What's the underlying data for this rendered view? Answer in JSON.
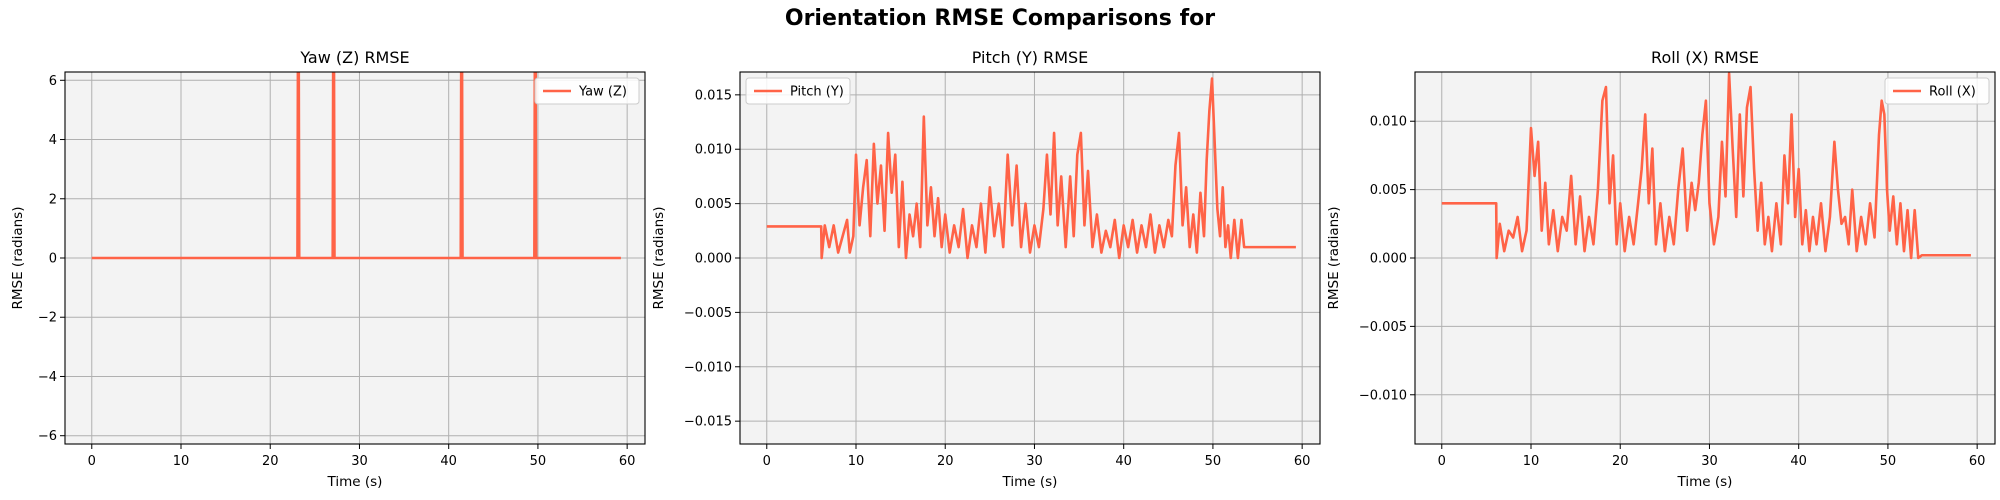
{
  "figure": {
    "suptitle": "Orientation RMSE Comparisons for"
  },
  "chart_data": [
    {
      "type": "line",
      "title": "Yaw (Z) RMSE",
      "xlabel": "Time (s)",
      "ylabel": "RMSE (radians)",
      "xlim": [
        -3,
        62
      ],
      "ylim": [
        -6.28,
        6.28
      ],
      "xticks": [
        0,
        10,
        20,
        30,
        40,
        50,
        60
      ],
      "yticks": [
        -6,
        -4,
        -2,
        0,
        2,
        4,
        6
      ],
      "ytick_labels": [
        "−6",
        "−4",
        "−2",
        "0",
        "2",
        "4",
        "6"
      ],
      "grid": true,
      "legend": "top-right",
      "background": "#f3f3f3",
      "series": [
        {
          "name": "Yaw (Z)",
          "color": "#ff6347",
          "x": [
            0,
            10,
            20,
            23.05,
            23.1,
            23.2,
            23.25,
            27.0,
            27.05,
            27.15,
            27.2,
            30,
            41.35,
            41.4,
            41.5,
            41.55,
            49.6,
            49.65,
            49.75,
            49.8,
            55,
            59.3
          ],
          "y": [
            0.0,
            0.0,
            0.0,
            0.0,
            6.28,
            6.28,
            0.0,
            0.0,
            6.28,
            6.28,
            0.0,
            0.0,
            0.0,
            6.28,
            6.28,
            0.0,
            0.0,
            6.28,
            6.28,
            0.0,
            0.0,
            0.0
          ]
        }
      ]
    },
    {
      "type": "line",
      "title": "Pitch (Y) RMSE",
      "xlabel": "Time (s)",
      "ylabel": "RMSE (radians)",
      "xlim": [
        -3,
        62
      ],
      "ylim": [
        -0.0171,
        0.0171
      ],
      "xticks": [
        0,
        10,
        20,
        30,
        40,
        50,
        60
      ],
      "yticks": [
        -0.015,
        -0.01,
        -0.005,
        0.0,
        0.005,
        0.01,
        0.015
      ],
      "ytick_labels": [
        "−0.015",
        "−0.010",
        "−0.005",
        "0.000",
        "0.005",
        "0.010",
        "0.015"
      ],
      "grid": true,
      "legend": "top-left",
      "background": "#f3f3f3",
      "series": [
        {
          "name": "Pitch (Y)",
          "color": "#ff6347",
          "x": [
            0,
            6.1,
            6.15,
            6.5,
            7,
            7.5,
            8,
            8.5,
            9,
            9.3,
            9.7,
            10,
            10.4,
            10.8,
            11.2,
            11.6,
            12,
            12.4,
            12.8,
            13.2,
            13.6,
            14,
            14.4,
            14.8,
            15.2,
            15.6,
            16,
            16.4,
            16.8,
            17.2,
            17.6,
            18,
            18.4,
            18.8,
            19.2,
            19.6,
            20,
            20.5,
            21,
            21.5,
            22,
            22.5,
            23,
            23.5,
            24,
            24.5,
            25,
            25.5,
            26,
            26.5,
            27,
            27.5,
            28,
            28.5,
            29,
            29.5,
            30,
            30.5,
            31,
            31.4,
            31.8,
            32.2,
            32.6,
            33,
            33.5,
            34,
            34.4,
            34.8,
            35.2,
            35.6,
            36,
            36.5,
            37,
            37.5,
            38,
            38.5,
            39,
            39.5,
            40,
            40.5,
            41,
            41.5,
            42,
            42.5,
            43,
            43.5,
            44,
            44.5,
            45,
            45.4,
            45.8,
            46.2,
            46.6,
            47,
            47.4,
            47.8,
            48.2,
            48.6,
            49,
            49.3,
            49.6,
            49.9,
            50.2,
            50.5,
            50.8,
            51.1,
            51.4,
            51.7,
            52,
            52.4,
            52.8,
            53.2,
            53.5,
            55,
            57,
            59.3
          ],
          "y": [
            0.0029,
            0.0029,
            0.0,
            0.003,
            0.001,
            0.003,
            0.0005,
            0.002,
            0.0035,
            0.0005,
            0.002,
            0.0095,
            0.003,
            0.0065,
            0.009,
            0.002,
            0.0105,
            0.005,
            0.0085,
            0.0025,
            0.0115,
            0.006,
            0.0095,
            0.001,
            0.007,
            0.0,
            0.004,
            0.002,
            0.005,
            0.001,
            0.013,
            0.003,
            0.0065,
            0.002,
            0.0055,
            0.001,
            0.004,
            0.0005,
            0.003,
            0.001,
            0.0045,
            0.0,
            0.003,
            0.001,
            0.005,
            0.0005,
            0.0065,
            0.002,
            0.005,
            0.001,
            0.0095,
            0.003,
            0.0085,
            0.001,
            0.005,
            0.0005,
            0.003,
            0.001,
            0.0045,
            0.0095,
            0.004,
            0.0115,
            0.003,
            0.0075,
            0.001,
            0.0075,
            0.002,
            0.0095,
            0.0115,
            0.003,
            0.008,
            0.001,
            0.004,
            0.0005,
            0.0025,
            0.001,
            0.0035,
            0.0,
            0.003,
            0.001,
            0.0035,
            0.0005,
            0.003,
            0.001,
            0.004,
            0.0005,
            0.003,
            0.001,
            0.0035,
            0.002,
            0.0085,
            0.0115,
            0.003,
            0.0065,
            0.001,
            0.004,
            0.0005,
            0.006,
            0.002,
            0.009,
            0.0135,
            0.0165,
            0.0105,
            0.0045,
            0.002,
            0.0065,
            0.001,
            0.003,
            0.0,
            0.0035,
            0.0,
            0.0035,
            0.001,
            0.001,
            0.001,
            0.001
          ]
        }
      ]
    },
    {
      "type": "line",
      "title": "Roll (X) RMSE",
      "xlabel": "Time (s)",
      "ylabel": "RMSE (radians)",
      "xlim": [
        -3,
        62
      ],
      "ylim": [
        -0.0136,
        0.0136
      ],
      "xticks": [
        0,
        10,
        20,
        30,
        40,
        50,
        60
      ],
      "yticks": [
        -0.01,
        -0.005,
        0.0,
        0.005,
        0.01
      ],
      "ytick_labels": [
        "−0.010",
        "−0.005",
        "0.000",
        "0.005",
        "0.010"
      ],
      "grid": true,
      "legend": "top-right",
      "background": "#f3f3f3",
      "series": [
        {
          "name": "Roll (X)",
          "color": "#ff6347",
          "x": [
            0,
            6.1,
            6.15,
            6.5,
            7,
            7.5,
            8,
            8.5,
            9,
            9.5,
            10,
            10.4,
            10.8,
            11.2,
            11.6,
            12,
            12.5,
            13,
            13.5,
            14,
            14.5,
            15,
            15.5,
            16,
            16.5,
            17,
            17.5,
            18,
            18.4,
            18.8,
            19.2,
            19.6,
            20,
            20.5,
            21,
            21.5,
            22,
            22.4,
            22.8,
            23.2,
            23.6,
            24,
            24.5,
            25,
            25.5,
            26,
            26.5,
            27,
            27.5,
            28,
            28.4,
            28.8,
            29.2,
            29.6,
            30,
            30.5,
            31,
            31.4,
            31.8,
            32.2,
            32.6,
            33,
            33.4,
            33.8,
            34.2,
            34.6,
            35,
            35.4,
            35.8,
            36.2,
            36.6,
            37,
            37.5,
            38,
            38.4,
            38.8,
            39.2,
            39.6,
            40,
            40.4,
            40.8,
            41.2,
            41.6,
            42,
            42.5,
            43,
            43.5,
            44,
            44.4,
            44.8,
            45.2,
            45.6,
            46,
            46.5,
            47,
            47.5,
            48,
            48.5,
            49,
            49.3,
            49.6,
            49.9,
            50.2,
            50.6,
            51,
            51.4,
            51.8,
            52.2,
            52.6,
            53,
            53.4,
            53.8,
            55,
            57,
            59.3
          ],
          "y": [
            0.004,
            0.004,
            0.0,
            0.0025,
            0.0005,
            0.002,
            0.0015,
            0.003,
            0.0005,
            0.002,
            0.0095,
            0.006,
            0.0085,
            0.002,
            0.0055,
            0.001,
            0.0035,
            0.0005,
            0.003,
            0.002,
            0.006,
            0.001,
            0.0045,
            0.0005,
            0.003,
            0.001,
            0.005,
            0.0115,
            0.0125,
            0.004,
            0.0075,
            0.001,
            0.004,
            0.0005,
            0.003,
            0.001,
            0.004,
            0.0065,
            0.0105,
            0.004,
            0.008,
            0.001,
            0.004,
            0.0005,
            0.003,
            0.001,
            0.005,
            0.008,
            0.002,
            0.0055,
            0.0035,
            0.0055,
            0.009,
            0.0115,
            0.004,
            0.001,
            0.003,
            0.0085,
            0.0045,
            0.0135,
            0.008,
            0.003,
            0.0105,
            0.0045,
            0.011,
            0.0125,
            0.0065,
            0.002,
            0.0055,
            0.001,
            0.003,
            0.0005,
            0.004,
            0.001,
            0.0075,
            0.004,
            0.0105,
            0.003,
            0.0065,
            0.001,
            0.0035,
            0.0005,
            0.003,
            0.001,
            0.004,
            0.0005,
            0.003,
            0.0085,
            0.005,
            0.0025,
            0.003,
            0.001,
            0.005,
            0.0005,
            0.003,
            0.001,
            0.004,
            0.0015,
            0.009,
            0.0115,
            0.0105,
            0.005,
            0.002,
            0.0045,
            0.001,
            0.004,
            0.0005,
            0.0035,
            0.0,
            0.0035,
            0.0,
            0.0002,
            0.0002,
            0.0002,
            0.0002
          ]
        }
      ]
    }
  ]
}
